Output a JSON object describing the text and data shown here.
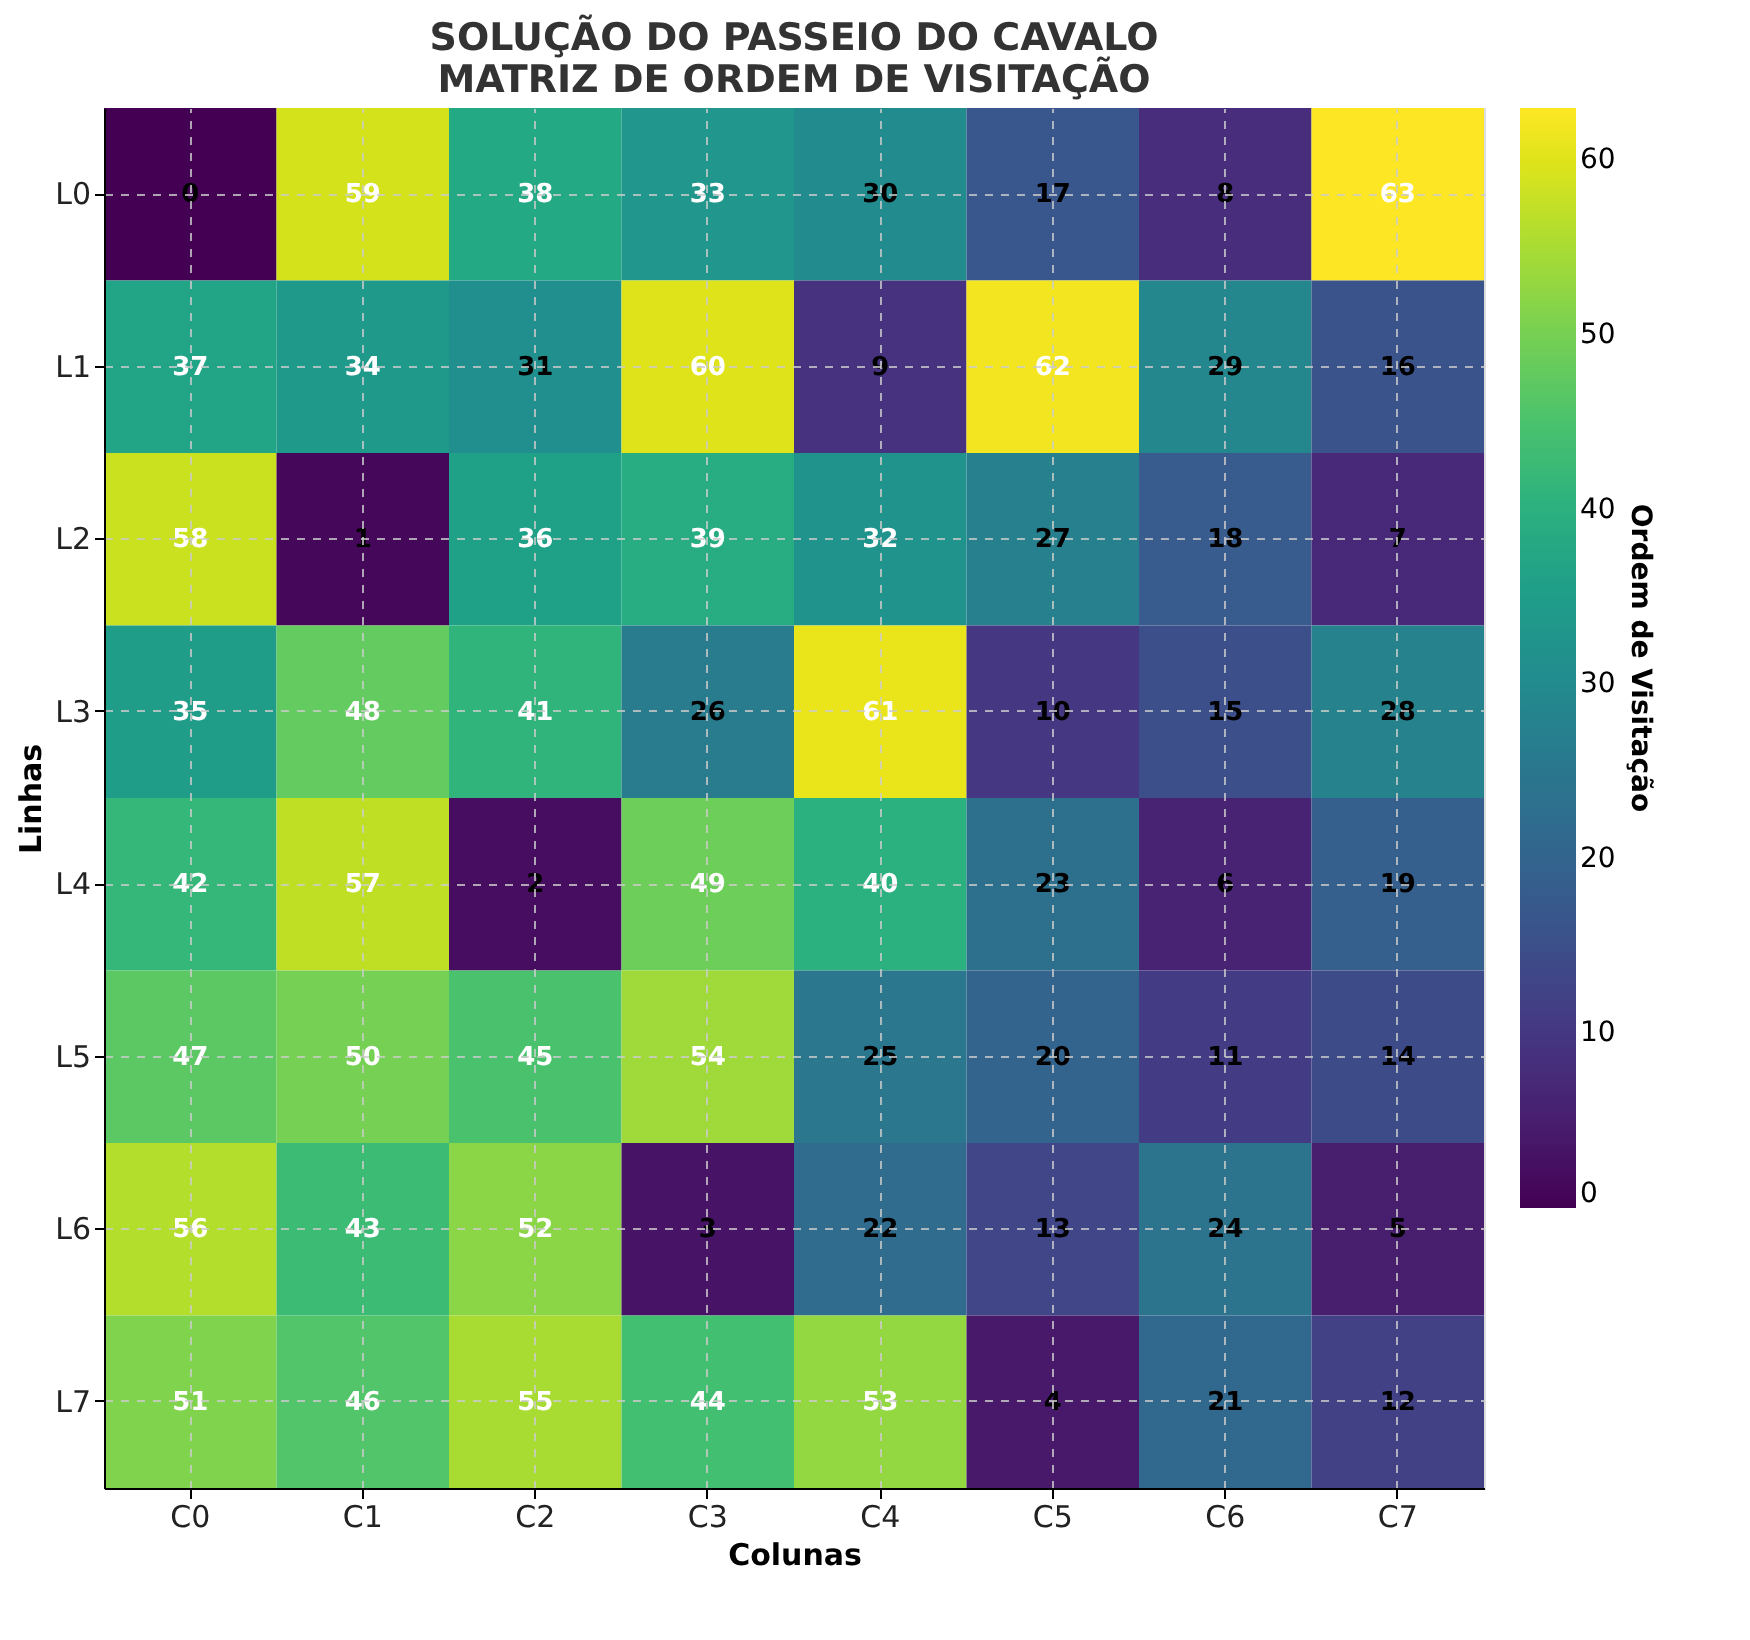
{
  "chart_data": {
    "type": "heatmap",
    "title": "SOLUÇÃO DO PASSEIO DO CAVALO\nMATRIZ DE ORDEM DE VISITAÇÃO",
    "xlabel": "Colunas",
    "ylabel": "Linhas",
    "clabel": "Ordem de Visitação",
    "categories": [
      "C0",
      "C1",
      "C2",
      "C3",
      "C4",
      "C5",
      "C6",
      "C7"
    ],
    "y_categories": [
      "L0",
      "L1",
      "L2",
      "L3",
      "L4",
      "L5",
      "L6",
      "L7"
    ],
    "cells": [
      [
        0,
        59,
        38,
        33,
        30,
        17,
        8,
        63
      ],
      [
        37,
        34,
        31,
        60,
        9,
        62,
        29,
        16
      ],
      [
        58,
        1,
        36,
        39,
        32,
        27,
        18,
        7
      ],
      [
        35,
        48,
        41,
        26,
        61,
        10,
        15,
        28
      ],
      [
        42,
        57,
        2,
        49,
        40,
        23,
        6,
        19
      ],
      [
        47,
        50,
        45,
        54,
        25,
        20,
        11,
        14
      ],
      [
        56,
        43,
        52,
        3,
        22,
        13,
        24,
        5
      ],
      [
        51,
        46,
        55,
        44,
        53,
        4,
        21,
        12
      ]
    ],
    "clim": [
      0,
      63
    ],
    "cticks": [
      0,
      10,
      20,
      30,
      40,
      50,
      60
    ],
    "data_labels": true,
    "grid": true
  }
}
